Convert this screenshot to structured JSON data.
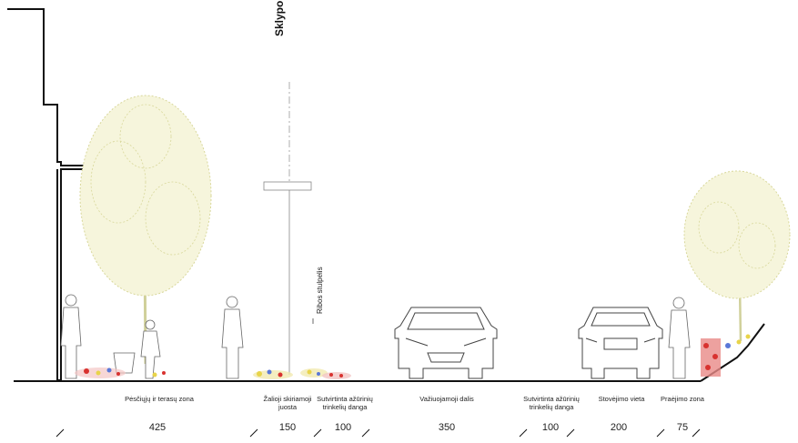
{
  "boundary_label": "Sklypo riba",
  "post_label": "Ribos stulpelis",
  "zones": [
    {
      "label": "Pėsčiųjų ir terasų zona",
      "dimension": "425"
    },
    {
      "label": "Žalioji skiriamoji\njuosta",
      "dimension": "150"
    },
    {
      "label": "Sutvirtinta ažūrinių\ntrinkelių danga",
      "dimension": "100"
    },
    {
      "label": "Važiuojamoji dalis",
      "dimension": "350"
    },
    {
      "label": "Sutvirtinta ažūrinių\ntrinkelių danga",
      "dimension": "100"
    },
    {
      "label": "Stovėjimo vieta",
      "dimension": "200"
    },
    {
      "label": "Praėjimo zona",
      "dimension": "75"
    }
  ],
  "colors": {
    "line": "#111111",
    "tree": "#d8d79a",
    "plant_red": "#d8322f",
    "plant_yellow": "#e8d44a",
    "plant_blue": "#5a78d8"
  }
}
